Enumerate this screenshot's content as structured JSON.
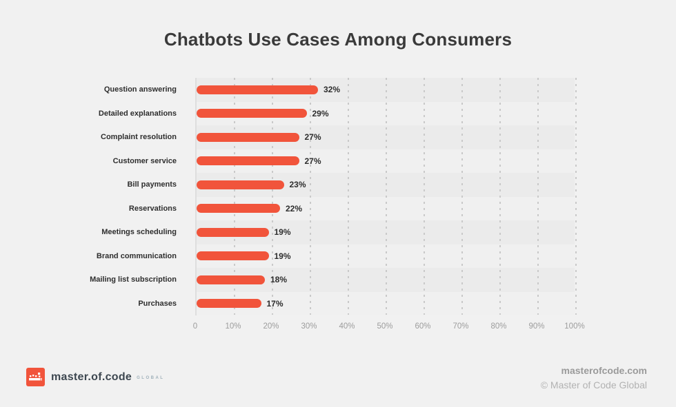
{
  "title": "Chatbots Use Cases Among Consumers",
  "chart_data": {
    "type": "bar",
    "orientation": "horizontal",
    "title": "Chatbots Use Cases Among Consumers",
    "categories": [
      "Question answering",
      "Detailed explanations",
      "Complaint resolution",
      "Customer service",
      "Bill payments",
      "Reservations",
      "Meetings scheduling",
      "Brand communication",
      "Mailing list subscription",
      "Purchases"
    ],
    "values": [
      32,
      29,
      27,
      27,
      23,
      22,
      19,
      19,
      18,
      17
    ],
    "value_suffix": "%",
    "xlabel": "",
    "ylabel": "",
    "xlim": [
      0,
      100
    ],
    "x_ticks": [
      "0",
      "10%",
      "20%",
      "30%",
      "40%",
      "50%",
      "60%",
      "70%",
      "80%",
      "90%",
      "100%"
    ],
    "grid": "vertical-dotted",
    "legend": "none"
  },
  "footer": {
    "logo_text": "master.of.code",
    "logo_suffix": "GLOBAL",
    "website": "masterofcode.com",
    "copyright": "© Master of Code Global"
  },
  "colors": {
    "background": "#f1f1f1",
    "accent": "#f1543b",
    "title_text": "#3a3a3a",
    "category_text": "#2e2e2e",
    "value_text": "#2d2d2d",
    "tick_text": "#9c9c9c",
    "stripe_dark": "#ebebeb",
    "stripe_light": "#f0f0f0"
  }
}
